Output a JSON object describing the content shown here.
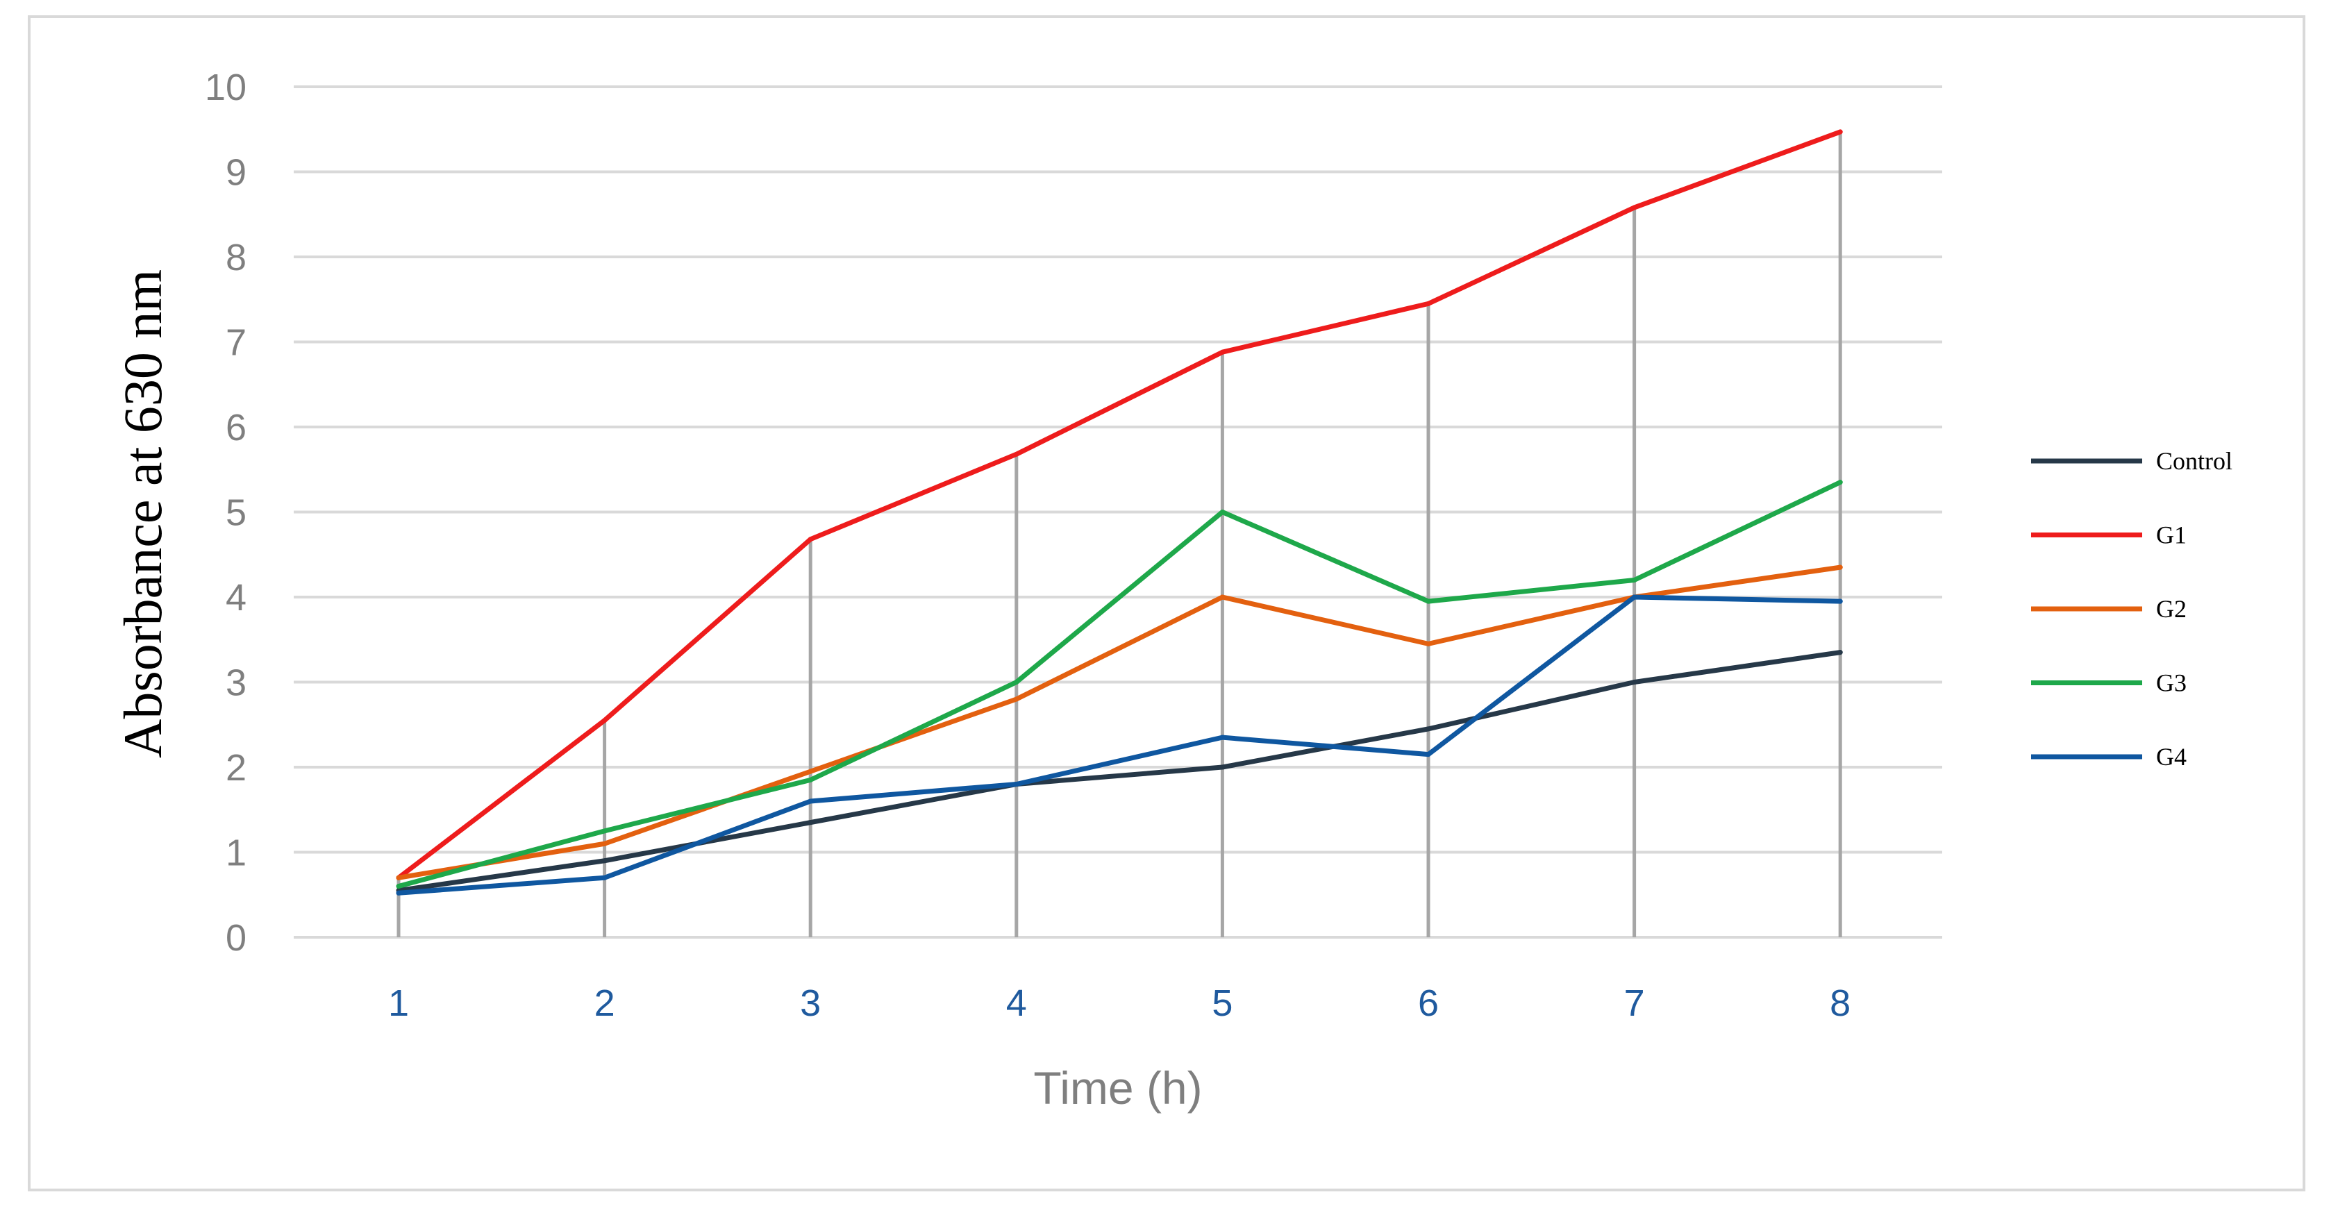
{
  "chart_data": {
    "type": "line",
    "xlabel": "Time (h)",
    "ylabel": "Absorbance at 630 nm",
    "categories": [
      "1",
      "2",
      "3",
      "4",
      "5",
      "6",
      "7",
      "8"
    ],
    "yticks": [
      "0",
      "1",
      "2",
      "3",
      "4",
      "5",
      "6",
      "7",
      "8",
      "9",
      "10"
    ],
    "ylim": [
      0,
      10
    ],
    "grid": "horizontal",
    "drop_lines": true,
    "legend_position": "right",
    "series": [
      {
        "name": "Control",
        "color": "#263848",
        "values": [
          0.55,
          0.9,
          1.35,
          1.8,
          2.0,
          2.45,
          3.0,
          3.35
        ]
      },
      {
        "name": "G1",
        "color": "#ee1c1c",
        "values": [
          0.7,
          2.55,
          4.68,
          5.68,
          6.88,
          7.45,
          8.58,
          9.47
        ]
      },
      {
        "name": "G2",
        "color": "#e3600f",
        "values": [
          0.7,
          1.1,
          1.95,
          2.8,
          4.0,
          3.45,
          4.0,
          4.35
        ]
      },
      {
        "name": "G3",
        "color": "#1ea84a",
        "values": [
          0.6,
          1.25,
          1.85,
          3.0,
          5.0,
          3.95,
          4.2,
          5.35
        ]
      },
      {
        "name": "G4",
        "color": "#0f57a0",
        "values": [
          0.52,
          0.7,
          1.6,
          1.8,
          2.35,
          2.15,
          4.0,
          3.95
        ]
      }
    ]
  }
}
